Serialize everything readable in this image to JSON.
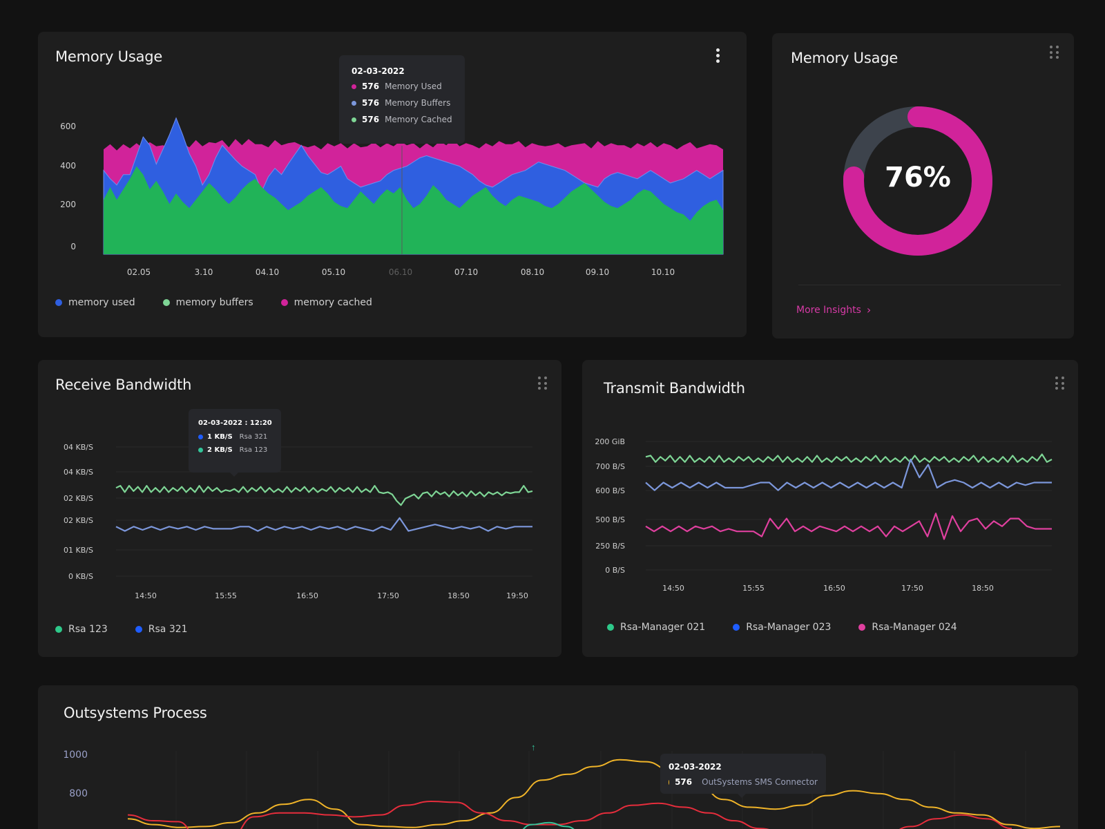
{
  "colors": {
    "background": "#121212",
    "card": "#1e1e1e",
    "magenta": "#d1239a",
    "blue": "#2f5fe0",
    "green": "#21b358",
    "lightGreen": "#7ed595",
    "lightBlue": "#7c97db",
    "pink": "#e0409f",
    "yellow": "#f0b429",
    "red": "#e62d3c",
    "teal": "#33c59a"
  },
  "memory_card": {
    "title": "Memory Usage",
    "menu_icon": "vertical-dots-icon",
    "tooltip": {
      "date": "02-03-2022",
      "rows": [
        {
          "value": "576",
          "name": "Memory Used",
          "color": "#d1239a"
        },
        {
          "value": "576",
          "name": "Memory Buffers",
          "color": "#7c97db"
        },
        {
          "value": "576",
          "name": "Memory Cached",
          "color": "#7ed595"
        }
      ]
    },
    "legend": [
      {
        "label": "memory used",
        "color": "#2f5fe0"
      },
      {
        "label": "memory buffers",
        "color": "#7ed595"
      },
      {
        "label": "memory cached",
        "color": "#d1239a"
      }
    ]
  },
  "donut_card": {
    "title": "Memory Usage",
    "menu_icon": "drag-handle-icon",
    "percent_label": "76%",
    "percent_value": 76,
    "more_label": "More Insights",
    "more_icon": "chevron-right-icon"
  },
  "receive_card": {
    "title": "Receive Bandwidth",
    "menu_icon": "drag-handle-icon",
    "tooltip": {
      "date": "02-03-2022 : 12:20",
      "rows": [
        {
          "value": "1 KB/S",
          "name": "Rsa 321",
          "color": "#1f5dff"
        },
        {
          "value": "2 KB/S",
          "name": "Rsa 123",
          "color": "#33c59a"
        }
      ]
    },
    "legend": [
      {
        "label": "Rsa 123",
        "color": "#2ec98a"
      },
      {
        "label": "Rsa 321",
        "color": "#1f5dff"
      }
    ]
  },
  "transmit_card": {
    "title": "Transmit Bandwidth",
    "menu_icon": "drag-handle-icon",
    "legend": [
      {
        "label": "Rsa-Manager 021",
        "color": "#2ec98a"
      },
      {
        "label": "Rsa-Manager 023",
        "color": "#1f5dff"
      },
      {
        "label": "Rsa-Manager 024",
        "color": "#e0409f"
      }
    ]
  },
  "process_card": {
    "title": "Outsystems Process",
    "marker": "↑",
    "tooltip": {
      "date": "02-03-2022",
      "rows": [
        {
          "value": "576",
          "name": "OutSystems SMS Connector",
          "color": "#f0b429"
        }
      ]
    }
  },
  "chart_data": [
    {
      "id": "memory",
      "type": "area",
      "stacked": false,
      "ylim": [
        0,
        650
      ],
      "yticks": [
        0,
        200,
        400,
        600
      ],
      "xlabels": [
        "02.05",
        "3.10",
        "04.10",
        "05.10",
        "06.10",
        "07.10",
        "08.10",
        "09.10",
        "10.10"
      ],
      "highlighted_label": "06.10",
      "series": [
        {
          "name": "memory cached",
          "color": "#d1239a",
          "values": [
            500,
            525,
            495,
            525,
            505,
            530,
            505,
            535,
            515,
            520,
            510,
            540,
            530,
            510,
            545,
            515,
            535,
            530,
            545,
            510,
            550,
            520,
            550,
            525,
            525,
            510,
            545,
            520,
            530,
            535,
            520,
            510,
            520,
            500,
            530,
            515,
            530,
            505,
            530,
            510,
            515,
            535,
            510,
            530,
            515,
            540,
            520,
            530,
            505,
            530,
            510,
            540,
            520,
            550,
            515,
            530,
            520,
            505,
            530,
            515,
            540,
            525,
            525,
            540,
            510,
            530,
            520,
            515,
            520,
            530,
            510,
            520,
            525,
            530,
            505,
            540,
            515,
            530,
            520,
            520,
            505,
            530,
            515,
            535,
            510,
            530,
            520,
            500,
            520,
            535,
            505,
            515,
            525,
            520,
            500
          ]
        },
        {
          "name": "memory used",
          "color": "#2f5fe0",
          "values": [
            400,
            360,
            330,
            380,
            380,
            470,
            560,
            520,
            430,
            500,
            570,
            650,
            570,
            480,
            420,
            330,
            380,
            460,
            520,
            485,
            450,
            420,
            400,
            380,
            300,
            370,
            410,
            380,
            430,
            475,
            520,
            470,
            430,
            390,
            380,
            400,
            420,
            360,
            340,
            320,
            330,
            340,
            350,
            380,
            400,
            410,
            420,
            440,
            460,
            470,
            460,
            450,
            440,
            430,
            420,
            400,
            380,
            350,
            330,
            320,
            340,
            360,
            380,
            390,
            400,
            420,
            440,
            430,
            420,
            410,
            400,
            380,
            360,
            340,
            330,
            320,
            360,
            380,
            390,
            380,
            370,
            360,
            380,
            400,
            380,
            360,
            340,
            350,
            360,
            380,
            400,
            380,
            360,
            380,
            400
          ]
        },
        {
          "name": "memory buffers",
          "color": "#21b358",
          "values": [
            260,
            320,
            260,
            310,
            360,
            420,
            380,
            310,
            350,
            300,
            240,
            290,
            250,
            220,
            260,
            300,
            340,
            310,
            270,
            240,
            270,
            310,
            340,
            360,
            320,
            290,
            270,
            240,
            210,
            230,
            250,
            280,
            300,
            320,
            290,
            250,
            230,
            220,
            260,
            300,
            270,
            240,
            280,
            310,
            290,
            320,
            260,
            220,
            240,
            280,
            330,
            300,
            260,
            240,
            220,
            250,
            280,
            300,
            320,
            280,
            250,
            230,
            260,
            280,
            270,
            260,
            250,
            230,
            220,
            240,
            270,
            300,
            320,
            340,
            310,
            280,
            250,
            230,
            220,
            240,
            260,
            290,
            310,
            300,
            270,
            240,
            220,
            200,
            190,
            160,
            200,
            230,
            250,
            260,
            210
          ]
        }
      ]
    },
    {
      "id": "receive",
      "type": "line",
      "ylabels": [
        "04 KB/S",
        "04 KB/S",
        "02 KB/S",
        "02 KB/S",
        "01 KB/S",
        "0 KB/S"
      ],
      "xlabels": [
        "14:50",
        "15:55",
        "16:50",
        "17:50",
        "18:50",
        "19:50"
      ],
      "ylim": [
        0,
        6
      ],
      "series": [
        {
          "name": "Rsa 123",
          "color": "#7ed595",
          "values": [
            4.1,
            4.2,
            3.9,
            4.2,
            3.95,
            4.15,
            3.9,
            4.2,
            3.9,
            4.1,
            3.9,
            4.15,
            3.9,
            4.1,
            3.95,
            4.15,
            3.9,
            4.1,
            3.9,
            4.2,
            3.9,
            4.15,
            3.95,
            4.1,
            3.9,
            4.0,
            3.95,
            4.05,
            3.9,
            4.15,
            3.9,
            4.1,
            3.95,
            4.15,
            3.9,
            4.1,
            3.9,
            4.05,
            3.9,
            4.15,
            3.9,
            4.1,
            3.95,
            4.15,
            3.9,
            4.1,
            3.9,
            4.05,
            3.95,
            4.15,
            3.9,
            4.1,
            3.95,
            4.1,
            3.9,
            4.15,
            3.9,
            4.05,
            3.9,
            4.2,
            3.9,
            3.85,
            3.9,
            3.8,
            3.5,
            3.3,
            3.6,
            3.7,
            3.8,
            3.6,
            3.85,
            3.9,
            3.7,
            3.95,
            3.8,
            3.9,
            3.7,
            3.95,
            3.75,
            3.9,
            3.7,
            3.95,
            3.75,
            3.9,
            3.7,
            3.9,
            3.8,
            3.9,
            3.75,
            3.9,
            3.85,
            3.9,
            3.9,
            4.2,
            3.9,
            3.95
          ]
        },
        {
          "name": "Rsa 321",
          "color": "#7c97db",
          "values": [
            2.3,
            2.1,
            2.3,
            2.15,
            2.3,
            2.15,
            2.3,
            2.2,
            2.3,
            2.15,
            2.3,
            2.2,
            2.2,
            2.2,
            2.3,
            2.3,
            2.1,
            2.3,
            2.15,
            2.3,
            2.2,
            2.3,
            2.15,
            2.3,
            2.2,
            2.3,
            2.15,
            2.3,
            2.2,
            2.1,
            2.3,
            2.15,
            2.7,
            2.1,
            2.2,
            2.3,
            2.4,
            2.3,
            2.2,
            2.3,
            2.2,
            2.3,
            2.1,
            2.3,
            2.2,
            2.3,
            2.3,
            2.3
          ]
        }
      ]
    },
    {
      "id": "transmit",
      "type": "line",
      "ylabels": [
        "200 GiB",
        "700 B/S",
        "600 B/S",
        "500 B/S",
        "250 B/S",
        "0 B/S"
      ],
      "xlabels": [
        "14:50",
        "15:55",
        "16:50",
        "17:50",
        "18:50"
      ],
      "ylim": [
        0,
        5
      ],
      "series": [
        {
          "name": "Rsa-Manager 021",
          "color": "#7ed595",
          "values": [
            4.4,
            4.45,
            4.2,
            4.4,
            4.25,
            4.45,
            4.2,
            4.4,
            4.2,
            4.45,
            4.2,
            4.35,
            4.2,
            4.4,
            4.2,
            4.45,
            4.2,
            4.35,
            4.2,
            4.4,
            4.25,
            4.4,
            4.2,
            4.35,
            4.2,
            4.4,
            4.25,
            4.45,
            4.2,
            4.4,
            4.2,
            4.35,
            4.2,
            4.4,
            4.2,
            4.45,
            4.2,
            4.35,
            4.2,
            4.4,
            4.25,
            4.4,
            4.2,
            4.35,
            4.2,
            4.4,
            4.25,
            4.45,
            4.2,
            4.4,
            4.2,
            4.35,
            4.2,
            4.4,
            4.2,
            4.45,
            4.2,
            4.35,
            4.2,
            4.4,
            4.25,
            4.4,
            4.2,
            4.35,
            4.2,
            4.4,
            4.25,
            4.45,
            4.2,
            4.4,
            4.2,
            4.35,
            4.2,
            4.4,
            4.2,
            4.45,
            4.2,
            4.35,
            4.2,
            4.4,
            4.25,
            4.5,
            4.2,
            4.3
          ]
        },
        {
          "name": "Rsa-Manager 023",
          "color": "#7c97db",
          "values": [
            3.4,
            3.1,
            3.4,
            3.2,
            3.4,
            3.2,
            3.4,
            3.2,
            3.4,
            3.2,
            3.2,
            3.2,
            3.3,
            3.4,
            3.4,
            3.1,
            3.4,
            3.2,
            3.4,
            3.2,
            3.4,
            3.2,
            3.4,
            3.2,
            3.4,
            3.2,
            3.4,
            3.2,
            3.4,
            3.2,
            4.3,
            3.6,
            4.1,
            3.2,
            3.4,
            3.5,
            3.4,
            3.2,
            3.4,
            3.2,
            3.4,
            3.2,
            3.4,
            3.3,
            3.4,
            3.4,
            3.4
          ]
        },
        {
          "name": "Rsa-Manager 024",
          "color": "#e0409f",
          "values": [
            1.7,
            1.5,
            1.7,
            1.5,
            1.7,
            1.5,
            1.7,
            1.6,
            1.7,
            1.5,
            1.6,
            1.5,
            1.5,
            1.5,
            1.3,
            2.0,
            1.6,
            2.0,
            1.5,
            1.7,
            1.5,
            1.7,
            1.6,
            1.5,
            1.7,
            1.5,
            1.7,
            1.5,
            1.7,
            1.3,
            1.7,
            1.5,
            1.7,
            1.9,
            1.3,
            2.2,
            1.2,
            2.1,
            1.5,
            1.9,
            2.0,
            1.6,
            1.9,
            1.7,
            2.0,
            2.0,
            1.7,
            1.6,
            1.6,
            1.6
          ]
        }
      ]
    },
    {
      "id": "process",
      "type": "line",
      "ylabels": [
        "1000",
        "800"
      ],
      "yticks": [
        1000,
        800
      ],
      "ylim": [
        560,
        1060
      ],
      "series": [
        {
          "name": "OutSystems SMS Connector",
          "color": "#f0b429",
          "values": [
            670,
            640,
            625,
            630,
            650,
            700,
            745,
            770,
            720,
            640,
            630,
            625,
            640,
            660,
            700,
            780,
            870,
            900,
            940,
            975,
            965,
            920,
            850,
            770,
            730,
            720,
            740,
            790,
            815,
            800,
            770,
            730,
            700,
            690,
            640,
            620,
            630
          ]
        },
        {
          "name": "series-red",
          "color": "#e62d3c",
          "values": [
            690,
            660,
            655,
            520,
            560,
            680,
            700,
            700,
            690,
            680,
            690,
            740,
            760,
            755,
            700,
            660,
            640,
            640,
            660,
            700,
            740,
            750,
            730,
            700,
            660,
            620,
            600,
            590,
            580,
            570,
            590,
            630,
            670,
            690,
            670,
            620
          ]
        },
        {
          "name": "series-teal",
          "color": "#33c59a",
          "values": [
            560,
            590,
            640,
            650,
            630,
            590
          ]
        }
      ]
    }
  ]
}
